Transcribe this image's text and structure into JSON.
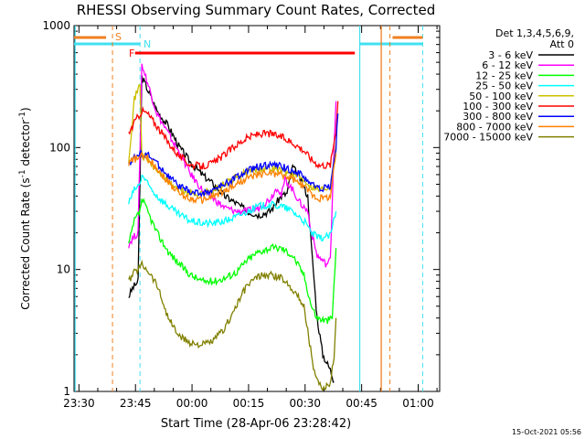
{
  "chart_data": {
    "type": "line",
    "title": "RHESSI Observing Summary Count Rates, Corrected",
    "xlabel": "Start Time (28-Apr-06 23:28:42)",
    "ylabel_main": "Corrected Count Rate (s",
    "ylabel_sup1": "-1",
    "ylabel_mid": " detector",
    "ylabel_sup2": "-1",
    "ylabel_end": ")",
    "y_scale": "log",
    "ylim": [
      1,
      1000
    ],
    "y_ticks": [
      "1",
      "10",
      "100",
      "1000"
    ],
    "x_range": [
      "23:28",
      "01:05"
    ],
    "x_ticks": [
      "23:30",
      "23:45",
      "00:00",
      "00:15",
      "00:30",
      "00:45",
      "01:00"
    ],
    "timestamp": "15-Oct-2021 05:56",
    "legend_header_1": "Det 1,3,4,5,6,9,",
    "legend_header_2": "Att 0",
    "series": [
      {
        "name": "3 - 6 keV",
        "color": "#000000",
        "points": [
          [
            14.5,
            6
          ],
          [
            15.5,
            7
          ],
          [
            17,
            8
          ],
          [
            18,
            380
          ],
          [
            19.5,
            300
          ],
          [
            22,
            200
          ],
          [
            25,
            150
          ],
          [
            28,
            100
          ],
          [
            31,
            75
          ],
          [
            34,
            60
          ],
          [
            37,
            50
          ],
          [
            40,
            40
          ],
          [
            43,
            35
          ],
          [
            46,
            30
          ],
          [
            49,
            28
          ],
          [
            52,
            30
          ],
          [
            55,
            40
          ],
          [
            56.5,
            42
          ],
          [
            58,
            70
          ],
          [
            60,
            55
          ],
          [
            62,
            40
          ],
          [
            63,
            15
          ],
          [
            64.5,
            4
          ],
          [
            66,
            2
          ],
          [
            68,
            1.5
          ],
          [
            69,
            1.2
          ]
        ]
      },
      {
        "name": "6 - 12 keV",
        "color": "#ff00ff",
        "points": [
          [
            14.5,
            16
          ],
          [
            15.5,
            18
          ],
          [
            17,
            20
          ],
          [
            18,
            480
          ],
          [
            19.5,
            340
          ],
          [
            22,
            190
          ],
          [
            25,
            130
          ],
          [
            28,
            90
          ],
          [
            31,
            60
          ],
          [
            34,
            45
          ],
          [
            37,
            38
          ],
          [
            40,
            32
          ],
          [
            43,
            30
          ],
          [
            46,
            30
          ],
          [
            49,
            32
          ],
          [
            52,
            38
          ],
          [
            54,
            48
          ],
          [
            55,
            40
          ],
          [
            56,
            55
          ],
          [
            58,
            45
          ],
          [
            60,
            35
          ],
          [
            62,
            30
          ],
          [
            63,
            20
          ],
          [
            64.5,
            13
          ],
          [
            67,
            11
          ],
          [
            68,
            12
          ],
          [
            69,
            110
          ],
          [
            69.5,
            240
          ]
        ]
      },
      {
        "name": "12 - 25 keV",
        "color": "#00ff00",
        "points": [
          [
            14.5,
            16
          ],
          [
            16,
            25
          ],
          [
            17.5,
            30
          ],
          [
            18,
            38
          ],
          [
            19.5,
            30
          ],
          [
            22,
            20
          ],
          [
            25,
            14
          ],
          [
            28,
            11
          ],
          [
            31,
            9
          ],
          [
            34,
            8
          ],
          [
            37,
            8
          ],
          [
            40,
            8.5
          ],
          [
            43,
            9.5
          ],
          [
            46,
            12
          ],
          [
            49,
            14
          ],
          [
            52,
            15
          ],
          [
            55,
            15
          ],
          [
            58,
            13
          ],
          [
            61,
            9
          ],
          [
            63,
            5
          ],
          [
            64.5,
            4
          ],
          [
            67,
            3.8
          ],
          [
            68.5,
            4
          ],
          [
            69.5,
            15
          ]
        ]
      },
      {
        "name": "25 - 50 keV",
        "color": "#00ffff",
        "points": [
          [
            14.5,
            35
          ],
          [
            16,
            45
          ],
          [
            17.5,
            50
          ],
          [
            18,
            60
          ],
          [
            19.5,
            50
          ],
          [
            22,
            40
          ],
          [
            25,
            33
          ],
          [
            28,
            28
          ],
          [
            31,
            25
          ],
          [
            34,
            24
          ],
          [
            37,
            24
          ],
          [
            40,
            25
          ],
          [
            43,
            27
          ],
          [
            46,
            30
          ],
          [
            49,
            33
          ],
          [
            52,
            34
          ],
          [
            55,
            33
          ],
          [
            58,
            30
          ],
          [
            61,
            25
          ],
          [
            63,
            20
          ],
          [
            65,
            18
          ],
          [
            68,
            19
          ],
          [
            69.5,
            30
          ]
        ]
      },
      {
        "name": "50 - 100 keV",
        "color": "#ccc000",
        "points": [
          [
            14.5,
            80
          ],
          [
            16,
            250
          ],
          [
            17.5,
            330
          ],
          [
            18,
            85
          ],
          [
            19.5,
            80
          ],
          [
            22,
            65
          ],
          [
            25,
            52
          ],
          [
            28,
            45
          ],
          [
            31,
            42
          ],
          [
            34,
            42
          ],
          [
            37,
            45
          ],
          [
            40,
            50
          ],
          [
            43,
            57
          ],
          [
            46,
            63
          ],
          [
            49,
            67
          ],
          [
            52,
            68
          ],
          [
            55,
            65
          ],
          [
            58,
            60
          ],
          [
            61,
            55
          ],
          [
            63,
            48
          ],
          [
            65,
            45
          ],
          [
            68,
            48
          ],
          [
            69.5,
            110
          ]
        ]
      },
      {
        "name": "100 - 300 keV",
        "color": "#ff0000",
        "points": [
          [
            14.5,
            130
          ],
          [
            16,
            160
          ],
          [
            17.5,
            190
          ],
          [
            18,
            200
          ],
          [
            19.5,
            190
          ],
          [
            22,
            150
          ],
          [
            25,
            110
          ],
          [
            28,
            85
          ],
          [
            31,
            72
          ],
          [
            34,
            70
          ],
          [
            37,
            75
          ],
          [
            40,
            88
          ],
          [
            43,
            105
          ],
          [
            46,
            120
          ],
          [
            49,
            130
          ],
          [
            52,
            130
          ],
          [
            55,
            122
          ],
          [
            58,
            110
          ],
          [
            61,
            95
          ],
          [
            63,
            80
          ],
          [
            65,
            72
          ],
          [
            68,
            72
          ],
          [
            69.5,
            140
          ],
          [
            70,
            240
          ]
        ]
      },
      {
        "name": "300 - 800 keV",
        "color": "#0000ff",
        "points": [
          [
            14.5,
            75
          ],
          [
            16,
            82
          ],
          [
            17.5,
            88
          ],
          [
            18,
            90
          ],
          [
            19.5,
            87
          ],
          [
            22,
            75
          ],
          [
            25,
            58
          ],
          [
            28,
            48
          ],
          [
            31,
            43
          ],
          [
            34,
            42
          ],
          [
            37,
            45
          ],
          [
            40,
            50
          ],
          [
            43,
            57
          ],
          [
            46,
            64
          ],
          [
            49,
            70
          ],
          [
            52,
            72
          ],
          [
            55,
            70
          ],
          [
            58,
            65
          ],
          [
            61,
            58
          ],
          [
            63,
            50
          ],
          [
            65,
            46
          ],
          [
            68,
            48
          ],
          [
            69.5,
            100
          ],
          [
            70,
            190
          ]
        ]
      },
      {
        "name": "800 - 7000 keV",
        "color": "#ff8000",
        "points": [
          [
            14.5,
            75
          ],
          [
            16,
            80
          ],
          [
            17.5,
            83
          ],
          [
            18,
            85
          ],
          [
            19.5,
            82
          ],
          [
            22,
            68
          ],
          [
            25,
            52
          ],
          [
            28,
            42
          ],
          [
            31,
            38
          ],
          [
            34,
            37
          ],
          [
            37,
            40
          ],
          [
            40,
            44
          ],
          [
            43,
            50
          ],
          [
            46,
            56
          ],
          [
            49,
            60
          ],
          [
            52,
            62
          ],
          [
            55,
            60
          ],
          [
            58,
            55
          ],
          [
            61,
            48
          ],
          [
            63,
            42
          ],
          [
            65,
            38
          ],
          [
            68,
            40
          ],
          [
            69.5,
            90
          ]
        ]
      },
      {
        "name": "7000 - 15000 keV",
        "color": "#808000",
        "points": [
          [
            14.5,
            8
          ],
          [
            16,
            9.5
          ],
          [
            17.5,
            10.5
          ],
          [
            18,
            11
          ],
          [
            19.5,
            10
          ],
          [
            22,
            7.5
          ],
          [
            25,
            4
          ],
          [
            28,
            2.8
          ],
          [
            31,
            2.5
          ],
          [
            34,
            2.4
          ],
          [
            37,
            2.6
          ],
          [
            40,
            3.3
          ],
          [
            43,
            5
          ],
          [
            46,
            7.5
          ],
          [
            49,
            8.8
          ],
          [
            52,
            9
          ],
          [
            55,
            8.5
          ],
          [
            58,
            7
          ],
          [
            61,
            5
          ],
          [
            63,
            2
          ],
          [
            64,
            1.3
          ],
          [
            66,
            1
          ],
          [
            68,
            1.2
          ],
          [
            69,
            2
          ],
          [
            69.5,
            4
          ]
        ]
      }
    ],
    "annotations": {
      "S_label": "S",
      "N_label": "N",
      "F_label": "F"
    }
  },
  "colors": {
    "background": "#ffffff",
    "plot_bg": "#ffffff",
    "axis": "#000000",
    "cyan": "#40e0f0",
    "orange": "#f08020",
    "red_flag": "#ff0000"
  }
}
